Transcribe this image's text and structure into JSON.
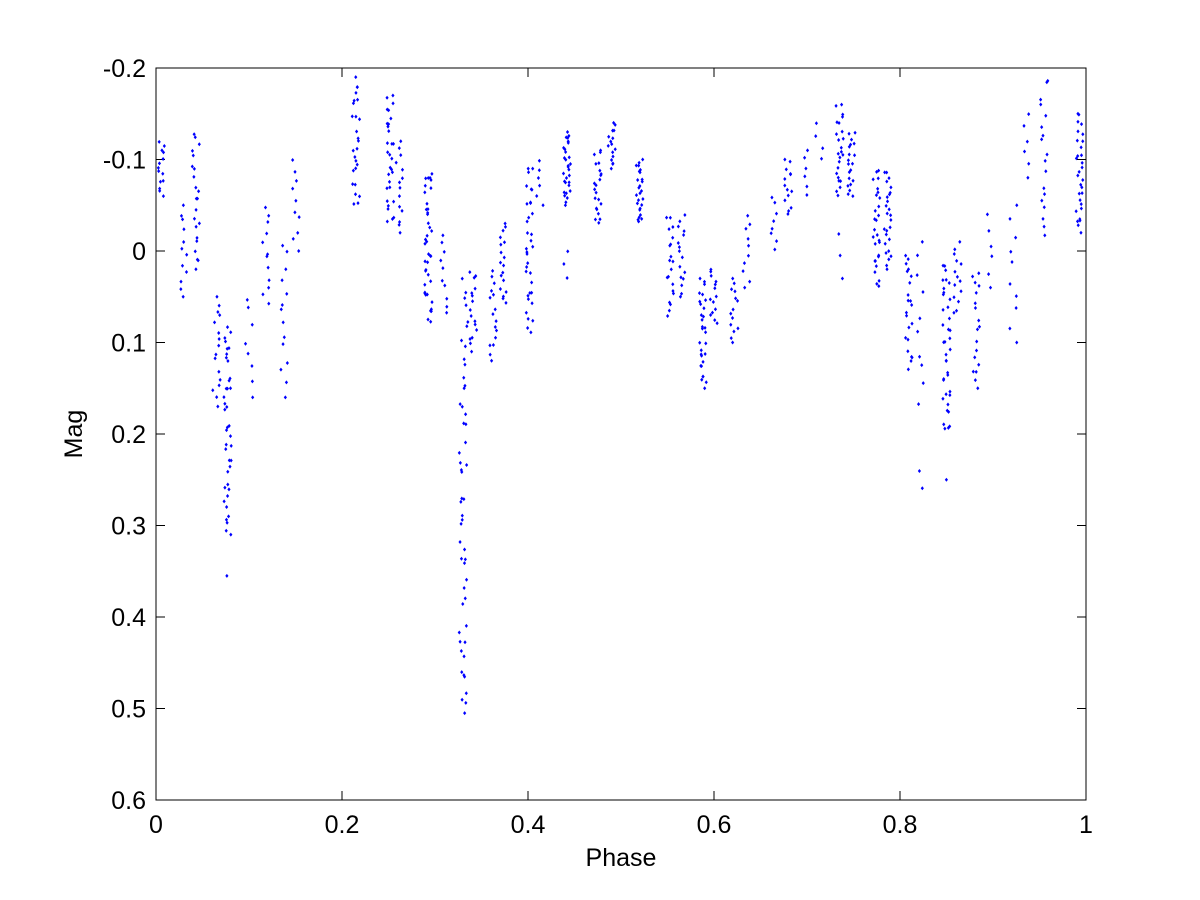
{
  "chart_data": {
    "type": "scatter",
    "title": "",
    "xlabel": "Phase",
    "ylabel": "Mag",
    "xlim": [
      0,
      1
    ],
    "ylim": [
      -0.2,
      0.6
    ],
    "y_reversed": true,
    "grid": false,
    "legend": "none",
    "marker_color": "#0000ff",
    "marker": "small diamond",
    "xticks": [
      0,
      0.2,
      0.4,
      0.6,
      0.8,
      1
    ],
    "xtick_labels": [
      "0",
      "0.2",
      "0.4",
      "0.6",
      "0.8",
      "1"
    ],
    "yticks": [
      -0.2,
      -0.1,
      0,
      0.1,
      0.2,
      0.3,
      0.4,
      0.5,
      0.6
    ],
    "ytick_labels": [
      "-0.2",
      "-0.1",
      "0",
      "0.1",
      "0.2",
      "0.3",
      "0.4",
      "0.5",
      "0.6"
    ],
    "series": [
      {
        "clusters": [
          {
            "x": 0.005,
            "ymin": -0.12,
            "ymax": -0.06,
            "n": 14
          },
          {
            "x": 0.03,
            "ymin": -0.05,
            "ymax": 0.05,
            "n": 12
          },
          {
            "x": 0.043,
            "ymin": -0.13,
            "ymax": 0.02,
            "n": 22
          },
          {
            "x": 0.065,
            "ymin": 0.05,
            "ymax": 0.17,
            "n": 16
          },
          {
            "x": 0.077,
            "ymin": 0.08,
            "ymax": 0.31,
            "n": 40
          },
          {
            "x": 0.077,
            "ymin": 0.355,
            "ymax": 0.355,
            "n": 1
          },
          {
            "x": 0.1,
            "ymin": 0.05,
            "ymax": 0.16,
            "n": 8
          },
          {
            "x": 0.118,
            "ymin": -0.05,
            "ymax": 0.06,
            "n": 12
          },
          {
            "x": 0.138,
            "ymin": -0.01,
            "ymax": 0.16,
            "n": 14
          },
          {
            "x": 0.15,
            "ymin": -0.1,
            "ymax": 0.0,
            "n": 10
          },
          {
            "x": 0.215,
            "ymin": -0.19,
            "ymax": -0.05,
            "n": 26
          },
          {
            "x": 0.252,
            "ymin": -0.17,
            "ymax": -0.03,
            "n": 30
          },
          {
            "x": 0.262,
            "ymin": -0.12,
            "ymax": -0.02,
            "n": 14
          },
          {
            "x": 0.293,
            "ymin": -0.09,
            "ymax": 0.08,
            "n": 40
          },
          {
            "x": 0.31,
            "ymin": -0.02,
            "ymax": 0.07,
            "n": 10
          },
          {
            "x": 0.33,
            "ymin": 0.15,
            "ymax": 0.505,
            "n": 40
          },
          {
            "x": 0.332,
            "ymin": 0.03,
            "ymax": 0.15,
            "n": 12
          },
          {
            "x": 0.341,
            "ymin": 0.02,
            "ymax": 0.11,
            "n": 16
          },
          {
            "x": 0.363,
            "ymin": 0.02,
            "ymax": 0.12,
            "n": 16
          },
          {
            "x": 0.373,
            "ymin": -0.03,
            "ymax": 0.06,
            "n": 18
          },
          {
            "x": 0.402,
            "ymin": -0.09,
            "ymax": 0.09,
            "n": 34
          },
          {
            "x": 0.413,
            "ymin": -0.1,
            "ymax": -0.05,
            "n": 6
          },
          {
            "x": 0.442,
            "ymin": -0.13,
            "ymax": -0.05,
            "n": 30
          },
          {
            "x": 0.442,
            "ymin": 0.0,
            "ymax": 0.03,
            "n": 3
          },
          {
            "x": 0.475,
            "ymin": -0.11,
            "ymax": -0.03,
            "n": 22
          },
          {
            "x": 0.49,
            "ymin": -0.14,
            "ymax": -0.09,
            "n": 16
          },
          {
            "x": 0.52,
            "ymin": -0.1,
            "ymax": -0.03,
            "n": 26
          },
          {
            "x": 0.553,
            "ymin": -0.04,
            "ymax": 0.075,
            "n": 20
          },
          {
            "x": 0.565,
            "ymin": -0.04,
            "ymax": 0.05,
            "n": 16
          },
          {
            "x": 0.588,
            "ymin": 0.03,
            "ymax": 0.15,
            "n": 30
          },
          {
            "x": 0.6,
            "ymin": 0.02,
            "ymax": 0.08,
            "n": 14
          },
          {
            "x": 0.622,
            "ymin": 0.03,
            "ymax": 0.1,
            "n": 14
          },
          {
            "x": 0.635,
            "ymin": -0.04,
            "ymax": 0.04,
            "n": 10
          },
          {
            "x": 0.665,
            "ymin": -0.06,
            "ymax": 0.0,
            "n": 8
          },
          {
            "x": 0.68,
            "ymin": -0.1,
            "ymax": -0.04,
            "n": 14
          },
          {
            "x": 0.7,
            "ymin": -0.11,
            "ymax": -0.06,
            "n": 6
          },
          {
            "x": 0.713,
            "ymin": -0.14,
            "ymax": -0.1,
            "n": 4
          },
          {
            "x": 0.735,
            "ymin": -0.16,
            "ymax": -0.06,
            "n": 24
          },
          {
            "x": 0.748,
            "ymin": -0.13,
            "ymax": -0.06,
            "n": 20
          },
          {
            "x": 0.735,
            "ymin": -0.02,
            "ymax": 0.03,
            "n": 3
          },
          {
            "x": 0.775,
            "ymin": -0.09,
            "ymax": 0.04,
            "n": 28
          },
          {
            "x": 0.787,
            "ymin": -0.09,
            "ymax": 0.02,
            "n": 26
          },
          {
            "x": 0.81,
            "ymin": 0.0,
            "ymax": 0.13,
            "n": 22
          },
          {
            "x": 0.822,
            "ymin": -0.01,
            "ymax": 0.17,
            "n": 10
          },
          {
            "x": 0.822,
            "ymin": 0.24,
            "ymax": 0.26,
            "n": 2
          },
          {
            "x": 0.85,
            "ymin": 0.01,
            "ymax": 0.2,
            "n": 38
          },
          {
            "x": 0.852,
            "ymin": 0.25,
            "ymax": 0.25,
            "n": 1
          },
          {
            "x": 0.862,
            "ymin": -0.01,
            "ymax": 0.07,
            "n": 14
          },
          {
            "x": 0.882,
            "ymin": 0.02,
            "ymax": 0.15,
            "n": 18
          },
          {
            "x": 0.897,
            "ymin": -0.04,
            "ymax": 0.04,
            "n": 6
          },
          {
            "x": 0.922,
            "ymin": -0.05,
            "ymax": 0.1,
            "n": 10
          },
          {
            "x": 0.937,
            "ymin": -0.15,
            "ymax": -0.08,
            "n": 6
          },
          {
            "x": 0.955,
            "ymin": -0.19,
            "ymax": -0.01,
            "n": 18
          },
          {
            "x": 0.993,
            "ymin": -0.15,
            "ymax": -0.02,
            "n": 30
          }
        ]
      }
    ]
  }
}
